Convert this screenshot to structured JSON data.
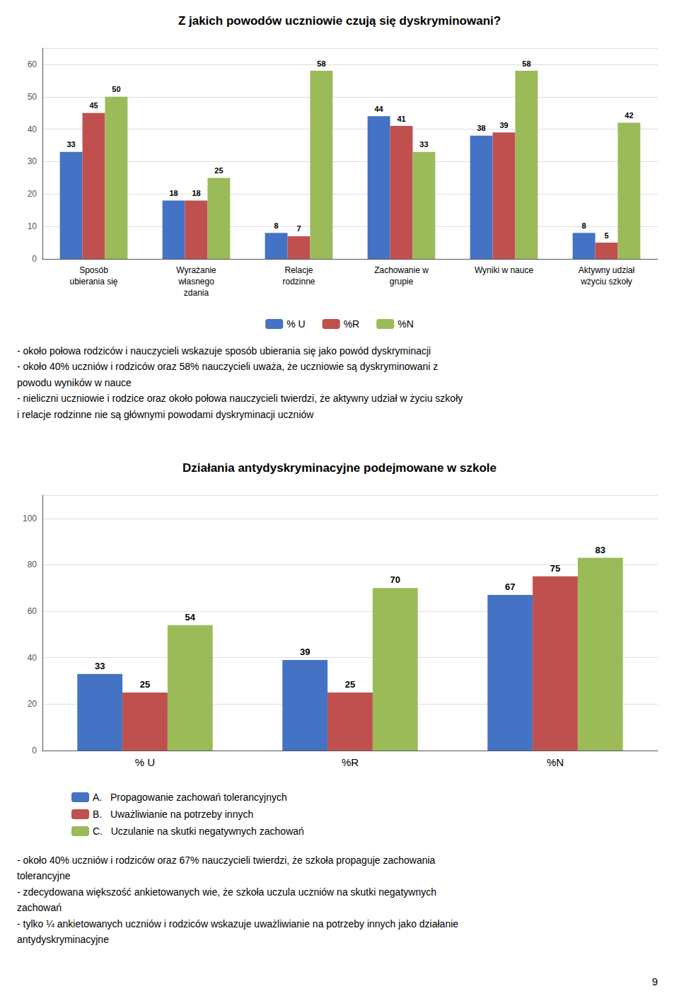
{
  "chart_data": [
    {
      "type": "bar",
      "title": "Z jakich powodów uczniowie czują się dyskryminowani?",
      "categories": [
        "Sposób\nubierania się",
        "Wyrażanie\nwłasnego\nzdania",
        "Relacje\nrodzinne",
        "Zachowanie w\ngrupie",
        "Wyniki w nauce",
        "Aktywny udział\nwżyciu szkoły"
      ],
      "series": [
        {
          "name": "% U",
          "color": "#4472C4",
          "values": [
            33,
            18,
            8,
            44,
            38,
            8
          ]
        },
        {
          "name": "%R",
          "color": "#C0504D",
          "values": [
            45,
            18,
            7,
            41,
            39,
            5
          ]
        },
        {
          "name": "%N",
          "color": "#9BBB59",
          "values": [
            50,
            25,
            58,
            33,
            58,
            42
          ]
        }
      ],
      "ylim": [
        0,
        65
      ],
      "yticks": [
        0,
        10,
        20,
        30,
        40,
        50,
        60
      ],
      "grid": true,
      "legend": "bottom",
      "data_labels": true,
      "annotations": [
        "- około połowa rodziców i nauczycieli wskazuje sposób ubierania się jako powód dyskryminacji",
        "- około 40% uczniów i rodziców oraz 58% nauczycieli uważa, że uczniowie są dyskryminowani z",
        "powodu wyników w nauce",
        "- nieliczni uczniowie i rodzice oraz około połowa nauczycieli twierdzi, że aktywny udział w życiu szkoły",
        "i relacje rodzinne nie są głównymi powodami dyskryminacji uczniów"
      ]
    },
    {
      "type": "bar",
      "title": "Działania antydyskryminacyjne podejmowane w szkole",
      "categories": [
        "% U",
        "%R",
        "%N"
      ],
      "series": [
        {
          "name": "A.   Propagowanie zachowań tolerancyjnych",
          "color": "#4472C4",
          "values": [
            33,
            39,
            67
          ]
        },
        {
          "name": "B.   Uważliwianie na potrzeby innych",
          "color": "#C0504D",
          "values": [
            25,
            25,
            75
          ]
        },
        {
          "name": "C.   Uczulanie na skutki negatywnych zachowań",
          "color": "#9BBB59",
          "values": [
            54,
            70,
            83
          ]
        }
      ],
      "ylim": [
        0,
        110
      ],
      "yticks": [
        0,
        20,
        40,
        60,
        80,
        100
      ],
      "grid": true,
      "legend": "bottom",
      "data_labels": true,
      "annotations": [
        "- około 40% uczniów i rodziców oraz 67% nauczycieli twierdzi, że szkoła propaguje zachowania",
        "tolerancyjne",
        "- zdecydowana większość ankietowanych wie, że szkoła uczula uczniów na skutki negatywnych",
        "zachowań",
        "- tylko ¼ ankietowanych uczniów i rodziców wskazuje uważliwianie na potrzeby innych jako działanie",
        "antydyskryminacyjne"
      ]
    }
  ],
  "annotations": [
    "9"
  ]
}
